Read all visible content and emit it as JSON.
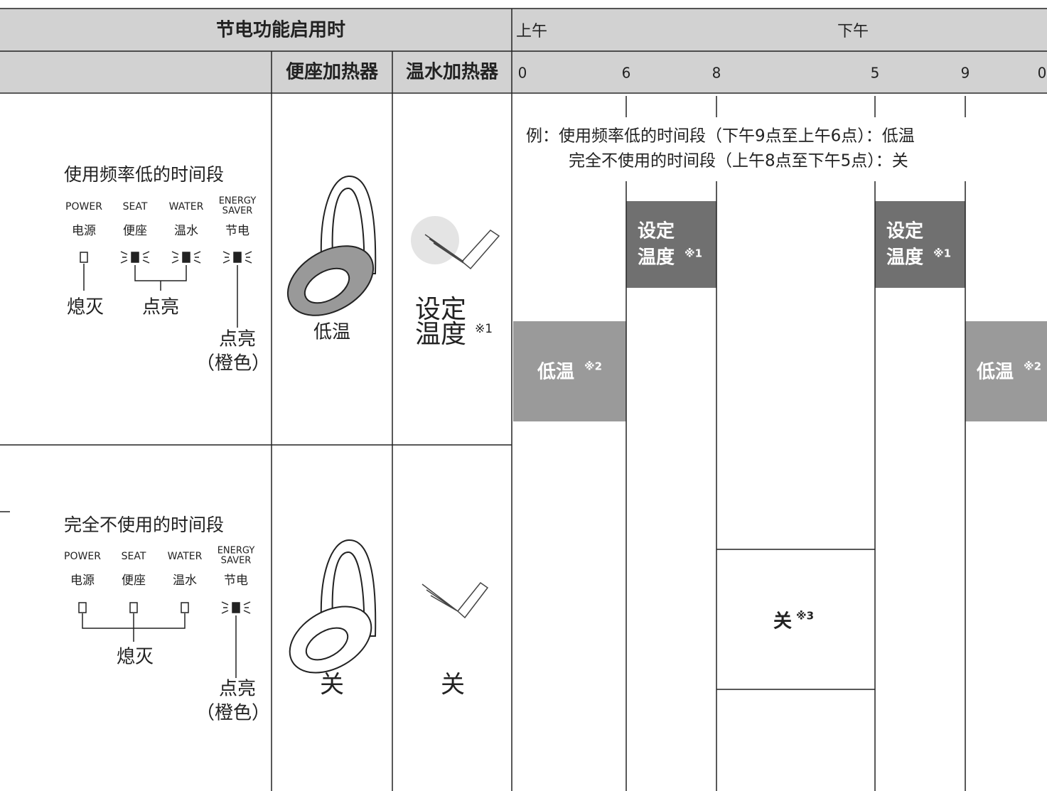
{
  "header": {
    "title": "节电功能启用时",
    "am": "上午",
    "pm": "下午",
    "columns": [
      "便座加热器",
      "温水加热器"
    ],
    "times": [
      "0",
      "6",
      "8",
      "5",
      "9",
      "0"
    ]
  },
  "rows": [
    {
      "mode": "使用频率低的时间段",
      "indicators": [
        {
          "name": [
            "POWER"
          ],
          "label": "电源"
        },
        {
          "name": [
            "SEAT"
          ],
          "label": "便座"
        },
        {
          "name": [
            "WATER"
          ],
          "label": "温水"
        },
        {
          "name": [
            "ENERGY",
            "SAVER"
          ],
          "label": "节电"
        }
      ],
      "off_label": "熄灭",
      "on_label": "点亮",
      "orange_label": [
        "点亮",
        "（橙色）"
      ],
      "seat": "低温",
      "water": {
        "lines": [
          "设定",
          "温度"
        ],
        "note": "※1"
      }
    },
    {
      "mode": "完全不使用的时间段",
      "indicators": [
        {
          "name": [
            "POWER"
          ],
          "label": "电源"
        },
        {
          "name": [
            "SEAT"
          ],
          "label": "便座"
        },
        {
          "name": [
            "WATER"
          ],
          "label": "温水"
        },
        {
          "name": [
            "ENERGY",
            "SAVER"
          ],
          "label": "节电"
        }
      ],
      "off_label": "熄灭",
      "orange_label": [
        "点亮",
        "（橙色）"
      ],
      "seat": "关",
      "water": {
        "lines": [
          "关"
        ]
      }
    }
  ],
  "example": {
    "lines": [
      "例：使用频率低的时间段（下午9点至上午6点）：低温",
      "完全不使用的时间段（上午8点至下午5点）：关"
    ]
  },
  "blocks": [
    {
      "lines": [
        "低温"
      ],
      "note": "※2"
    },
    {
      "lines": [
        "设定",
        "温度"
      ],
      "note": "※1"
    },
    {
      "lines": [
        "设定",
        "温度"
      ],
      "note": "※1"
    },
    {
      "lines": [
        "低温"
      ],
      "note": "※2"
    },
    {
      "lines": [
        "关"
      ],
      "note": "※3"
    }
  ]
}
